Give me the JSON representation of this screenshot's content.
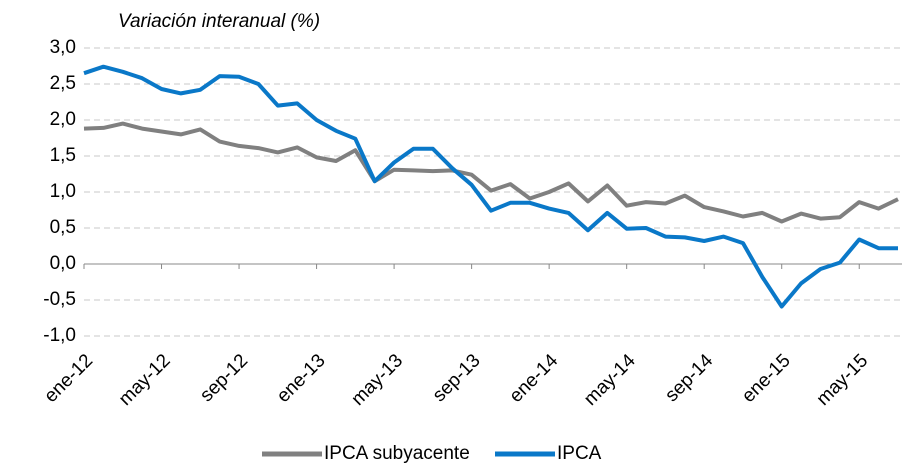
{
  "chart_data": {
    "type": "line",
    "title": "Variación interanual (%)",
    "categories": [
      "ene-12",
      null,
      null,
      null,
      "may-12",
      null,
      null,
      null,
      "sep-12",
      null,
      null,
      null,
      "ene-13",
      null,
      null,
      null,
      "may-13",
      null,
      null,
      null,
      "sep-13",
      null,
      null,
      null,
      "ene-14",
      null,
      null,
      null,
      "may-14",
      null,
      null,
      null,
      "sep-14",
      null,
      null,
      null,
      "ene-15",
      null,
      null,
      null,
      "may-15",
      null,
      null
    ],
    "series": [
      {
        "name": "IPCA subyacente",
        "color": "#808080",
        "values": [
          1.88,
          1.89,
          1.95,
          1.88,
          1.84,
          1.8,
          1.87,
          1.7,
          1.64,
          1.61,
          1.55,
          1.62,
          1.48,
          1.43,
          1.58,
          1.15,
          1.31,
          1.3,
          1.29,
          1.3,
          1.24,
          1.02,
          1.11,
          0.91,
          1.0,
          1.12,
          0.87,
          1.09,
          0.81,
          0.86,
          0.84,
          0.95,
          0.79,
          0.73,
          0.66,
          0.71,
          0.59,
          0.7,
          0.63,
          0.65,
          0.86,
          0.77,
          0.9
        ]
      },
      {
        "name": "IPCA",
        "color": "#0a78c8",
        "values": [
          2.65,
          2.74,
          2.67,
          2.58,
          2.43,
          2.37,
          2.42,
          2.61,
          2.6,
          2.5,
          2.2,
          2.23,
          2.0,
          1.85,
          1.74,
          1.15,
          1.41,
          1.6,
          1.6,
          1.33,
          1.1,
          0.74,
          0.85,
          0.85,
          0.77,
          0.71,
          0.47,
          0.71,
          0.49,
          0.5,
          0.38,
          0.37,
          0.32,
          0.38,
          0.29,
          -0.18,
          -0.59,
          -0.27,
          -0.07,
          0.02,
          0.34,
          0.22,
          0.22
        ]
      }
    ],
    "ylim": [
      -1,
      3
    ],
    "yticks": [
      {
        "value": -1,
        "label": "-1,0"
      },
      {
        "value": -0.5,
        "label": "-0,5"
      },
      {
        "value": 0,
        "label": "0,0"
      },
      {
        "value": 0.5,
        "label": "0,5"
      },
      {
        "value": 1,
        "label": "1,0"
      },
      {
        "value": 1.5,
        "label": "1,5"
      },
      {
        "value": 2,
        "label": "2,0"
      },
      {
        "value": 2.5,
        "label": "2,5"
      },
      {
        "value": 3,
        "label": "3,0"
      }
    ],
    "grid": true,
    "legend": "bottom"
  }
}
